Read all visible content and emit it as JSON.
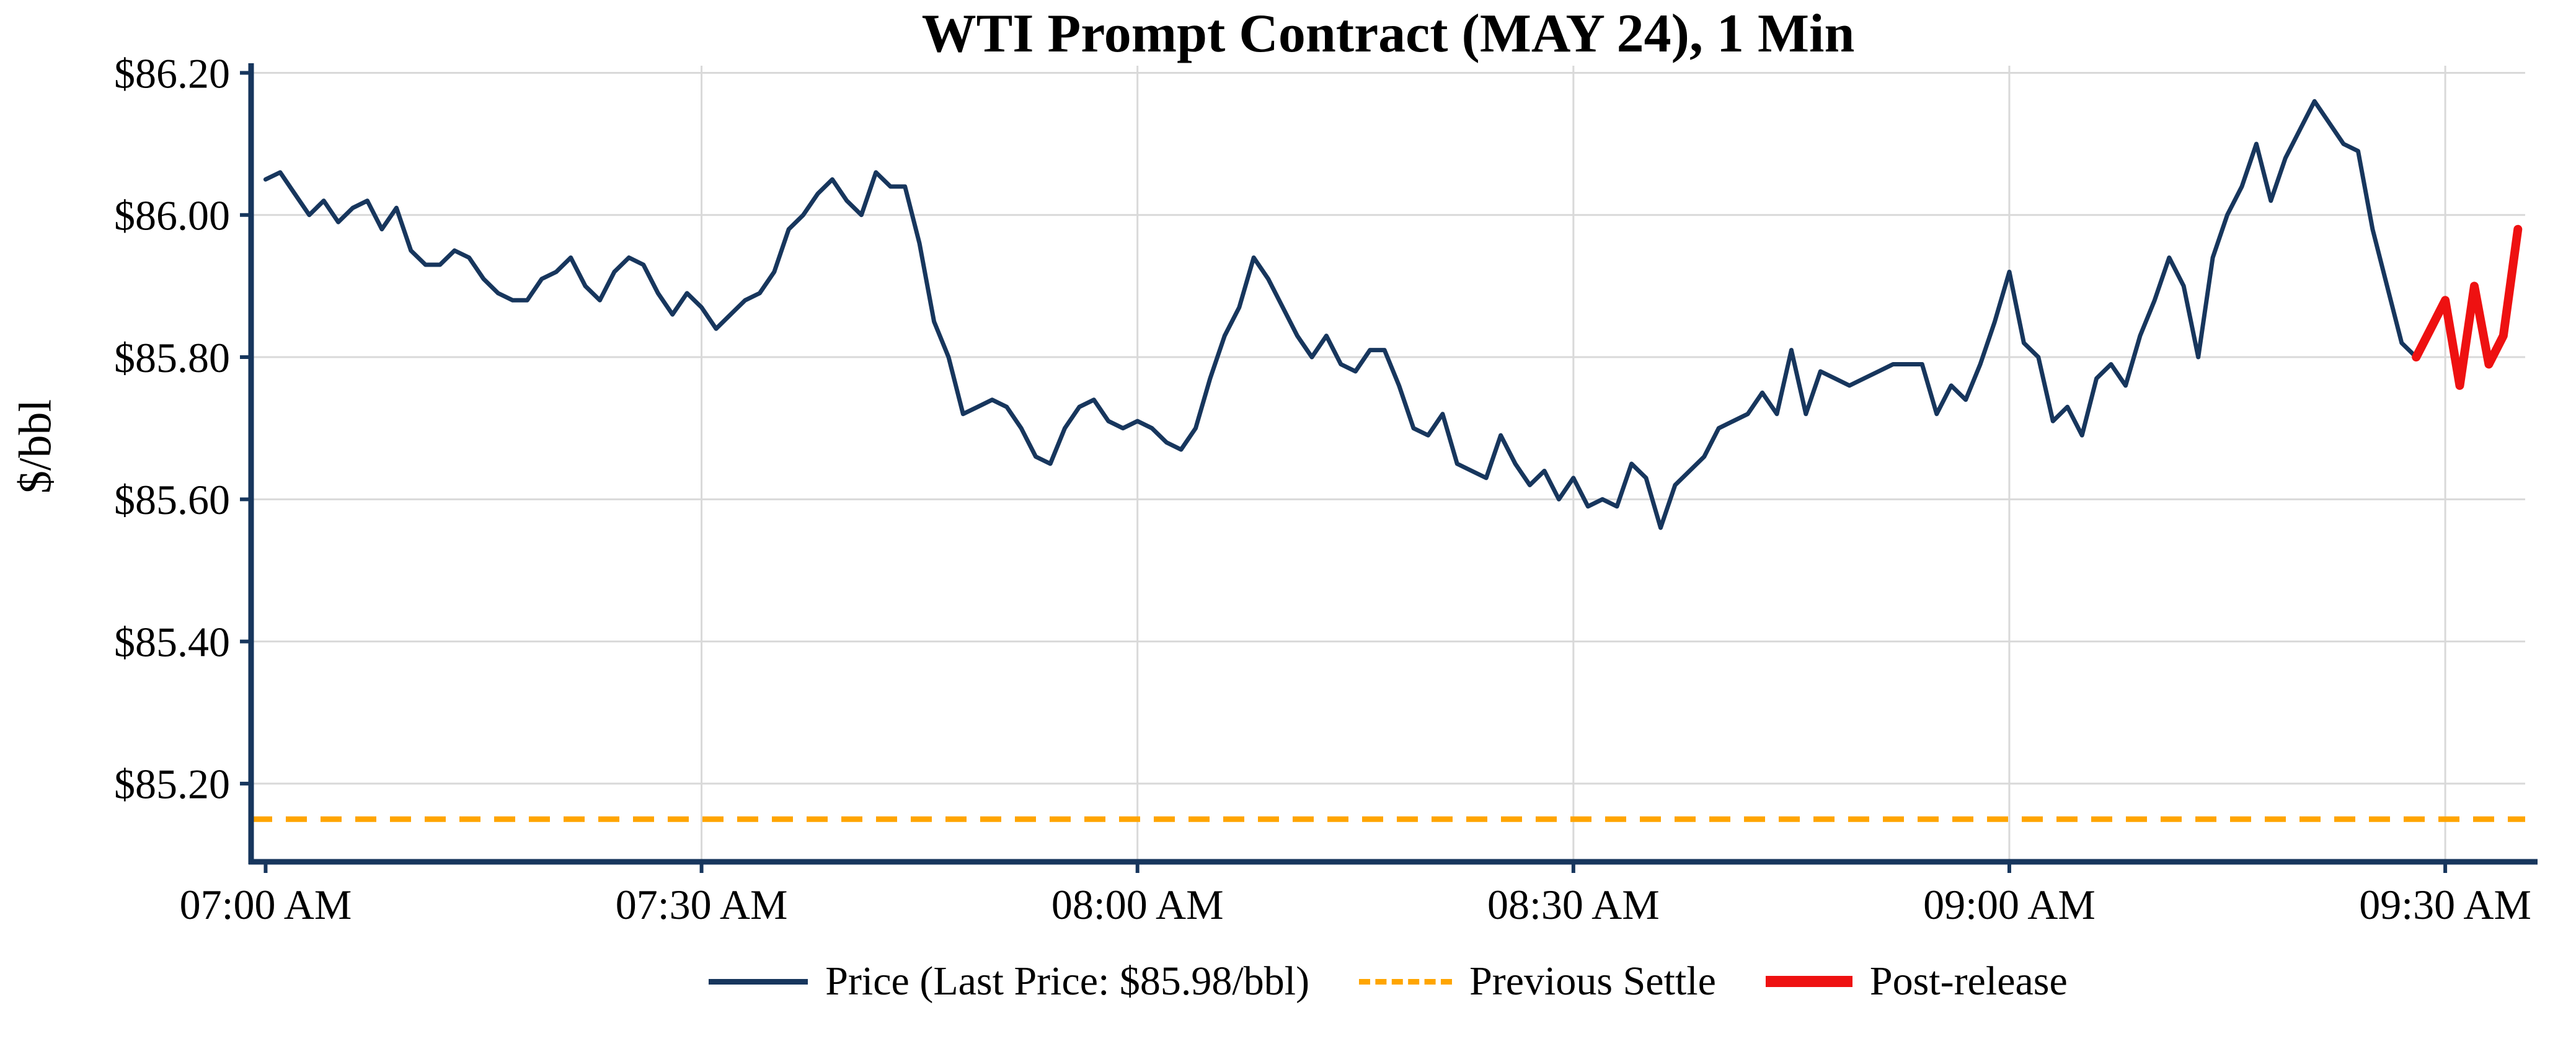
{
  "chart_data": {
    "type": "line",
    "title": "WTI Prompt Contract (MAY 24), 1 Min",
    "ylabel": "$/bbl",
    "xlabel": "",
    "x_unit": "minutes since 07:00 AM",
    "xlim": [
      -1,
      155.5
    ],
    "ylim": [
      85.09,
      86.21
    ],
    "grid": true,
    "legend_position": "bottom-center",
    "colors": {
      "price": "#17365d",
      "previous_settle": "#FFA500",
      "post_release": "#ee1111",
      "grid": "#d9d9d9",
      "axis": "#17365d",
      "text": "#000000"
    },
    "y_ticks": [
      {
        "v": 86.2,
        "label": "$86.20"
      },
      {
        "v": 86.0,
        "label": "$86.00"
      },
      {
        "v": 85.8,
        "label": "$85.80"
      },
      {
        "v": 85.6,
        "label": "$85.60"
      },
      {
        "v": 85.4,
        "label": "$85.40"
      },
      {
        "v": 85.2,
        "label": "$85.20"
      }
    ],
    "x_ticks": [
      {
        "t": 0,
        "label": "07:00 AM"
      },
      {
        "t": 30,
        "label": "07:30 AM"
      },
      {
        "t": 60,
        "label": "08:00 AM"
      },
      {
        "t": 90,
        "label": "08:30 AM"
      },
      {
        "t": 120,
        "label": "09:00 AM"
      },
      {
        "t": 150,
        "label": "09:30 AM"
      }
    ],
    "previous_settle": 85.15,
    "last_price": 85.98,
    "series": [
      {
        "name": "Price",
        "color": "#17365d",
        "width": 7,
        "t_start": 0,
        "values": [
          86.05,
          86.06,
          86.03,
          86.0,
          86.02,
          85.99,
          86.01,
          86.02,
          85.98,
          86.01,
          85.95,
          85.93,
          85.93,
          85.95,
          85.94,
          85.91,
          85.89,
          85.88,
          85.88,
          85.91,
          85.92,
          85.94,
          85.9,
          85.88,
          85.92,
          85.94,
          85.93,
          85.89,
          85.86,
          85.89,
          85.87,
          85.84,
          85.86,
          85.88,
          85.89,
          85.92,
          85.98,
          86.0,
          86.03,
          86.05,
          86.02,
          86.0,
          86.06,
          86.04,
          86.04,
          85.96,
          85.85,
          85.8,
          85.72,
          85.73,
          85.74,
          85.73,
          85.7,
          85.66,
          85.65,
          85.7,
          85.73,
          85.74,
          85.71,
          85.7,
          85.71,
          85.7,
          85.68,
          85.67,
          85.7,
          85.77,
          85.83,
          85.87,
          85.94,
          85.91,
          85.87,
          85.83,
          85.8,
          85.83,
          85.79,
          85.78,
          85.81,
          85.81,
          85.76,
          85.7,
          85.69,
          85.72,
          85.65,
          85.64,
          85.63,
          85.69,
          85.65,
          85.62,
          85.64,
          85.6,
          85.63,
          85.59,
          85.6,
          85.59,
          85.65,
          85.63,
          85.56,
          85.62,
          85.64,
          85.66,
          85.7,
          85.71,
          85.72,
          85.75,
          85.72,
          85.81,
          85.72,
          85.78,
          85.77,
          85.76,
          85.77,
          85.78,
          85.79,
          85.79,
          85.79,
          85.72,
          85.76,
          85.74,
          85.79,
          85.85,
          85.92,
          85.82,
          85.8,
          85.71,
          85.73,
          85.69,
          85.77,
          85.79,
          85.76,
          85.83,
          85.88,
          85.94,
          85.9,
          85.8,
          85.94,
          86.0,
          86.04,
          86.1,
          86.02,
          86.08,
          86.12,
          86.16,
          86.13,
          86.1,
          86.09,
          85.98,
          85.9,
          85.82,
          85.8
        ]
      },
      {
        "name": "Post-release",
        "color": "#ee1111",
        "width": 14,
        "t_start": 148,
        "values": [
          85.8,
          85.84,
          85.88,
          85.76,
          85.9,
          85.79,
          85.83,
          85.98
        ]
      }
    ],
    "legend": [
      {
        "label": "Price (Last Price: $85.98/bbl)",
        "color": "#17365d",
        "style": "solid"
      },
      {
        "label": "Previous Settle",
        "color": "#FFA500",
        "style": "dashed"
      },
      {
        "label": "Post-release",
        "color": "#ee1111",
        "style": "thick"
      }
    ]
  }
}
